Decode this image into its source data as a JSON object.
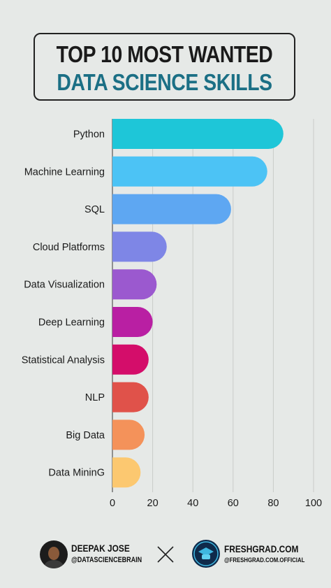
{
  "header": {
    "title_line1": "TOP 10 MOST WANTED",
    "title_line2": "DATA SCIENCE SKILLS"
  },
  "chart_data": {
    "type": "bar",
    "orientation": "horizontal",
    "categories": [
      "Python",
      "Machine Learning",
      "SQL",
      "Cloud Platforms",
      "Data Visualization",
      "Deep Learning",
      "Statistical Analysis",
      "NLP",
      "Big Data",
      "Data MininG"
    ],
    "values": [
      85,
      77,
      59,
      27,
      22,
      20,
      18,
      18,
      16,
      14
    ],
    "colors": [
      "#1ec6d8",
      "#4cc3f5",
      "#5ea7f2",
      "#7e86e6",
      "#9b59cf",
      "#b91fa3",
      "#d40d6a",
      "#e0524a",
      "#f4925a",
      "#fcc870"
    ],
    "xticks": [
      0,
      20,
      40,
      60,
      80,
      100
    ],
    "xlim": [
      0,
      100
    ],
    "grid": true,
    "title": "",
    "xlabel": "",
    "ylabel": ""
  },
  "footer": {
    "person_name": "DEEPAK JOSE",
    "person_handle": "@DATASCIENCEBRAIN",
    "brand_name": "FRESHGRAD.COM",
    "brand_handle": "@FRESHGRAD.COM.OFFICIAL"
  }
}
